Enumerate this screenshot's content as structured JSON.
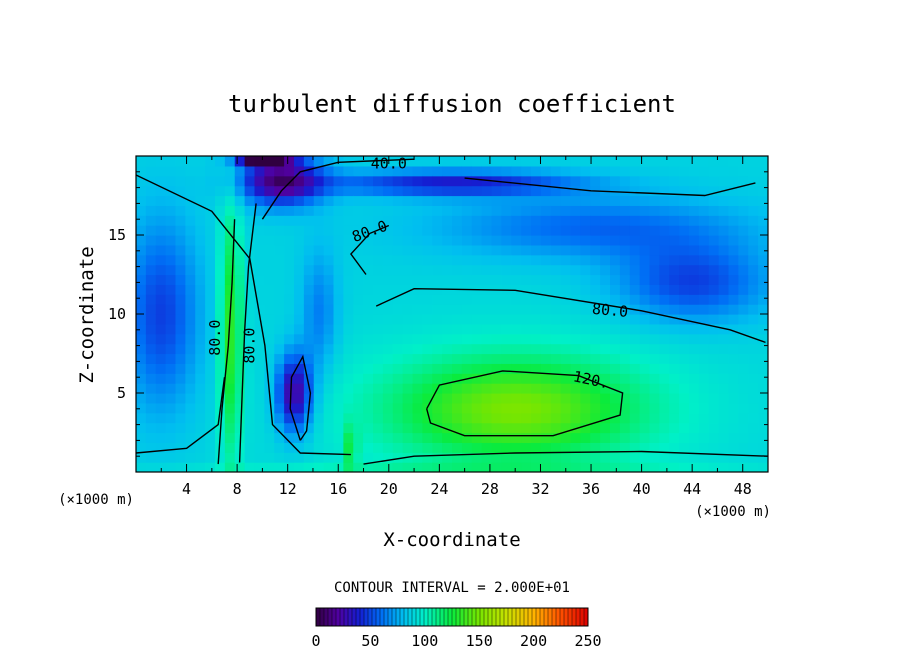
{
  "chart_data": {
    "type": "heatmap",
    "title": "turbulent diffusion coefficient",
    "xlabel": "X-coordinate",
    "ylabel": "Z-coordinate",
    "x_unit": "(×1000 m)",
    "z_unit": "(×1000 m)",
    "xlim": [
      0,
      50
    ],
    "ylim": [
      0,
      20
    ],
    "x_ticks": [
      "4",
      "8",
      "12",
      "16",
      "20",
      "24",
      "28",
      "32",
      "36",
      "40",
      "44",
      "48"
    ],
    "y_ticks": [
      "5",
      "10",
      "15"
    ],
    "contour_interval_text": "CONTOUR INTERVAL = 2.000E+01",
    "contour_labels": [
      {
        "text": "40.0",
        "x": 20,
        "z": 19.5,
        "angle": 0
      },
      {
        "text": "80.0",
        "x": 18.5,
        "z": 15.2,
        "angle": -20
      },
      {
        "text": "80.0",
        "x": 37.5,
        "z": 10.2,
        "angle": 5
      },
      {
        "text": "120.",
        "x": 36,
        "z": 5.8,
        "angle": 12
      },
      {
        "text": "80.0",
        "x": 6.3,
        "z": 8.5,
        "angle": -90
      },
      {
        "text": "80.0",
        "x": 9.0,
        "z": 8.0,
        "angle": -90
      }
    ],
    "colorbar": {
      "min": 0,
      "max": 250,
      "ticks": [
        "0",
        "50",
        "100",
        "150",
        "200",
        "250"
      ]
    },
    "field_features": [
      {
        "kind": "broad maximum",
        "x": 30,
        "z": 4,
        "value": 130
      },
      {
        "kind": "minimum",
        "x": 12.5,
        "z": 5,
        "value": 10
      },
      {
        "kind": "minimum",
        "x": 11,
        "z": 19,
        "value": 5
      },
      {
        "kind": "minimum",
        "x": 2,
        "z": 11,
        "value": 40
      },
      {
        "kind": "minimum",
        "x": 44,
        "z": 12,
        "value": 40
      }
    ]
  }
}
